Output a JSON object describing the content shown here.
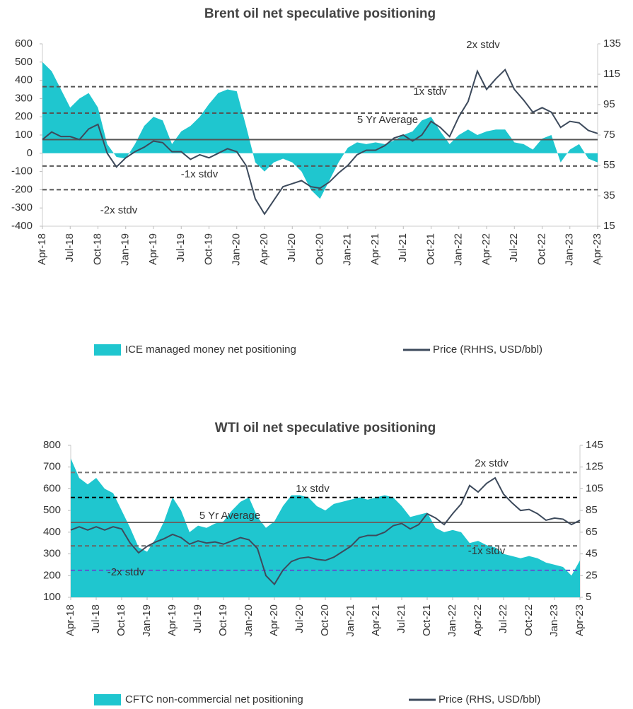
{
  "chart_data": [
    {
      "type": "combo",
      "title": "Brent oil net speculative positioning",
      "categories": [
        "Apr-18",
        null,
        null,
        "Jul-18",
        null,
        null,
        "Oct-18",
        null,
        null,
        "Jan-19",
        null,
        null,
        "Apr-19",
        null,
        null,
        "Jul-19",
        null,
        null,
        "Oct-19",
        null,
        null,
        "Jan-20",
        null,
        null,
        "Apr-20",
        null,
        null,
        "Jul-20",
        null,
        null,
        "Oct-20",
        null,
        null,
        "Jan-21",
        null,
        null,
        "Apr-21",
        null,
        null,
        "Jul-21",
        null,
        null,
        "Oct-21",
        null,
        null,
        "Jan-22",
        null,
        null,
        "Apr-22",
        null,
        null,
        "Jul-22",
        null,
        null,
        "Oct-22",
        null,
        null,
        "Jan-23",
        null,
        null,
        "Apr-23"
      ],
      "series": [
        {
          "name": "ICE managed money net positioning",
          "kind": "area",
          "color": "#1fc6cf",
          "values": [
            500,
            450,
            350,
            250,
            300,
            330,
            250,
            50,
            -20,
            -30,
            50,
            150,
            200,
            180,
            50,
            120,
            150,
            200,
            270,
            330,
            350,
            340,
            150,
            -50,
            -100,
            -50,
            -30,
            -50,
            -100,
            -200,
            -250,
            -150,
            -50,
            30,
            60,
            50,
            60,
            50,
            70,
            100,
            120,
            180,
            200,
            120,
            50,
            100,
            130,
            100,
            120,
            130,
            130,
            60,
            50,
            20,
            80,
            100,
            -50,
            20,
            50,
            -30,
            -50
          ]
        },
        {
          "name": "Price (RHHS, USD/bbl)",
          "kind": "line",
          "axis": "y2",
          "color": "#3d4a5c",
          "values": [
            72,
            77,
            74,
            74,
            72,
            79,
            82,
            63,
            54,
            60,
            64,
            67,
            71,
            70,
            64,
            64,
            59,
            62,
            60,
            63,
            66,
            64,
            55,
            33,
            23,
            32,
            41,
            43,
            45,
            41,
            40,
            44,
            50,
            55,
            62,
            65,
            65,
            68,
            73,
            75,
            71,
            75,
            84,
            80,
            74,
            87,
            97,
            117,
            105,
            112,
            118,
            105,
            98,
            90,
            93,
            90,
            80,
            84,
            83,
            78,
            76
          ]
        }
      ],
      "reference_lines": [
        {
          "value": 365,
          "label": "2x stdv",
          "style": "dashed",
          "color": "#555555"
        },
        {
          "value": 220,
          "label": "1x stdv",
          "style": "dashed",
          "color": "#555555"
        },
        {
          "value": 75,
          "label": "5 Yr Average",
          "style": "solid",
          "color": "#555555"
        },
        {
          "value": -70,
          "label": "-1x stdv",
          "style": "dashed",
          "color": "#555555"
        },
        {
          "value": -200,
          "label": "-2x stdv",
          "style": "dashed",
          "color": "#555555"
        }
      ],
      "ylim": [
        -400,
        600
      ],
      "yticks": [
        -400,
        -300,
        -200,
        -100,
        0,
        100,
        200,
        300,
        400,
        500,
        600
      ],
      "y2lim": [
        15,
        135
      ],
      "y2ticks": [
        15,
        35,
        55,
        75,
        95,
        115,
        135
      ]
    },
    {
      "type": "combo",
      "title": "WTI oil net speculative positioning",
      "categories": [
        "Apr-18",
        null,
        null,
        "Jul-18",
        null,
        null,
        "Oct-18",
        null,
        null,
        "Jan-19",
        null,
        null,
        "Apr-19",
        null,
        null,
        "Jul-19",
        null,
        null,
        "Oct-19",
        null,
        null,
        "Jan-20",
        null,
        null,
        "Apr-20",
        null,
        null,
        "Jul-20",
        null,
        null,
        "Oct-20",
        null,
        null,
        "Jan-21",
        null,
        null,
        "Apr-21",
        null,
        null,
        "Jul-21",
        null,
        null,
        "Oct-21",
        null,
        null,
        "Jan-22",
        null,
        null,
        "Apr-22",
        null,
        null,
        "Jul-22",
        null,
        null,
        "Oct-22",
        null,
        null,
        "Jan-23",
        null,
        null,
        "Apr-23"
      ],
      "series": [
        {
          "name": "CFTC non-commercial net positioning",
          "kind": "area",
          "color": "#1fc6cf",
          "values": [
            740,
            650,
            620,
            650,
            600,
            580,
            500,
            420,
            330,
            310,
            370,
            450,
            560,
            500,
            400,
            430,
            420,
            440,
            450,
            500,
            540,
            560,
            470,
            420,
            450,
            520,
            570,
            570,
            560,
            520,
            500,
            530,
            540,
            550,
            560,
            550,
            560,
            570,
            560,
            520,
            470,
            480,
            490,
            420,
            400,
            410,
            400,
            350,
            360,
            340,
            330,
            300,
            290,
            280,
            290,
            280,
            260,
            250,
            240,
            200,
            270
          ]
        },
        {
          "name": "Price (RHS, USD/bbl)",
          "kind": "line",
          "axis": "y2",
          "color": "#3d4a5c",
          "values": [
            67,
            70,
            67,
            70,
            67,
            70,
            68,
            55,
            46,
            52,
            56,
            59,
            63,
            60,
            54,
            57,
            55,
            56,
            54,
            57,
            60,
            58,
            50,
            25,
            17,
            30,
            38,
            41,
            42,
            40,
            39,
            42,
            47,
            52,
            60,
            62,
            62,
            65,
            71,
            73,
            68,
            72,
            82,
            78,
            72,
            82,
            91,
            108,
            102,
            110,
            115,
            100,
            92,
            85,
            86,
            82,
            76,
            78,
            77,
            72,
            76
          ]
        }
      ],
      "reference_lines": [
        {
          "value": 675,
          "label": "2x stdv",
          "style": "dashed",
          "color": "#777777"
        },
        {
          "value": 560,
          "label": "1x stdv",
          "style": "dashed",
          "color": "#000000"
        },
        {
          "value": 445,
          "label": "5 Yr Average",
          "style": "solid",
          "color": "#666666"
        },
        {
          "value": 337,
          "label": "-1x stdv",
          "style": "dashed",
          "color": "#666666"
        },
        {
          "value": 224,
          "label": "-2x stdv",
          "style": "dashed",
          "color": "#5a5ad0"
        }
      ],
      "ylim": [
        100,
        800
      ],
      "yticks": [
        100,
        200,
        300,
        400,
        500,
        600,
        700,
        800
      ],
      "y2lim": [
        5,
        145
      ],
      "y2ticks": [
        5,
        25,
        45,
        65,
        85,
        105,
        125,
        145
      ]
    }
  ]
}
